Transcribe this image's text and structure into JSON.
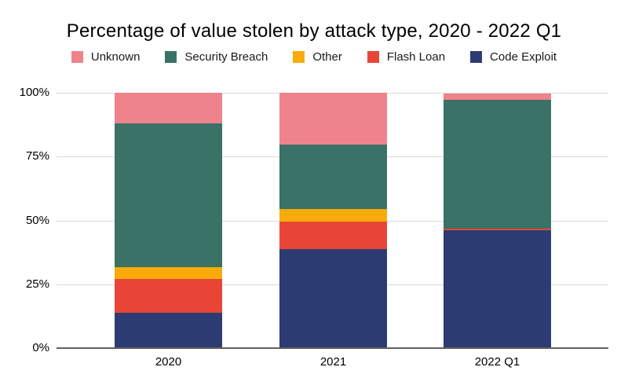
{
  "chart_data": {
    "type": "bar",
    "stacked": true,
    "title": "Percentage of value stolen by attack type, 2020 - 2022 Q1",
    "categories": [
      "2020",
      "2021",
      "2022 Q1"
    ],
    "series": [
      {
        "name": "Code Exploit",
        "color": "#2C3C72",
        "values": [
          13.8,
          38.9,
          46.2
        ]
      },
      {
        "name": "Flash Loan",
        "color": "#E94537",
        "values": [
          13.3,
          10.7,
          0.7
        ]
      },
      {
        "name": "Other",
        "color": "#FBAB09",
        "values": [
          4.6,
          4.9,
          0
        ]
      },
      {
        "name": "Security Breach",
        "color": "#3A7267",
        "values": [
          56.2,
          25.2,
          50.4
        ]
      },
      {
        "name": "Unknown",
        "color": "#EF838B",
        "values": [
          12.1,
          20.3,
          2.4
        ]
      }
    ],
    "legend_order": [
      "Unknown",
      "Security Breach",
      "Other",
      "Flash Loan",
      "Code Exploit"
    ],
    "y_ticks": [
      {
        "label": "0%",
        "value": 0
      },
      {
        "label": "25%",
        "value": 25
      },
      {
        "label": "50%",
        "value": 50
      },
      {
        "label": "75%",
        "value": 75
      },
      {
        "label": "100%",
        "value": 100
      }
    ],
    "ylim": [
      0,
      100
    ],
    "grid": true,
    "legend_position": "top",
    "gridline_color": "#D9D9D9",
    "axis_line_color": "#616161",
    "background_color": "#FFFFFF",
    "text_color": "#000000"
  }
}
